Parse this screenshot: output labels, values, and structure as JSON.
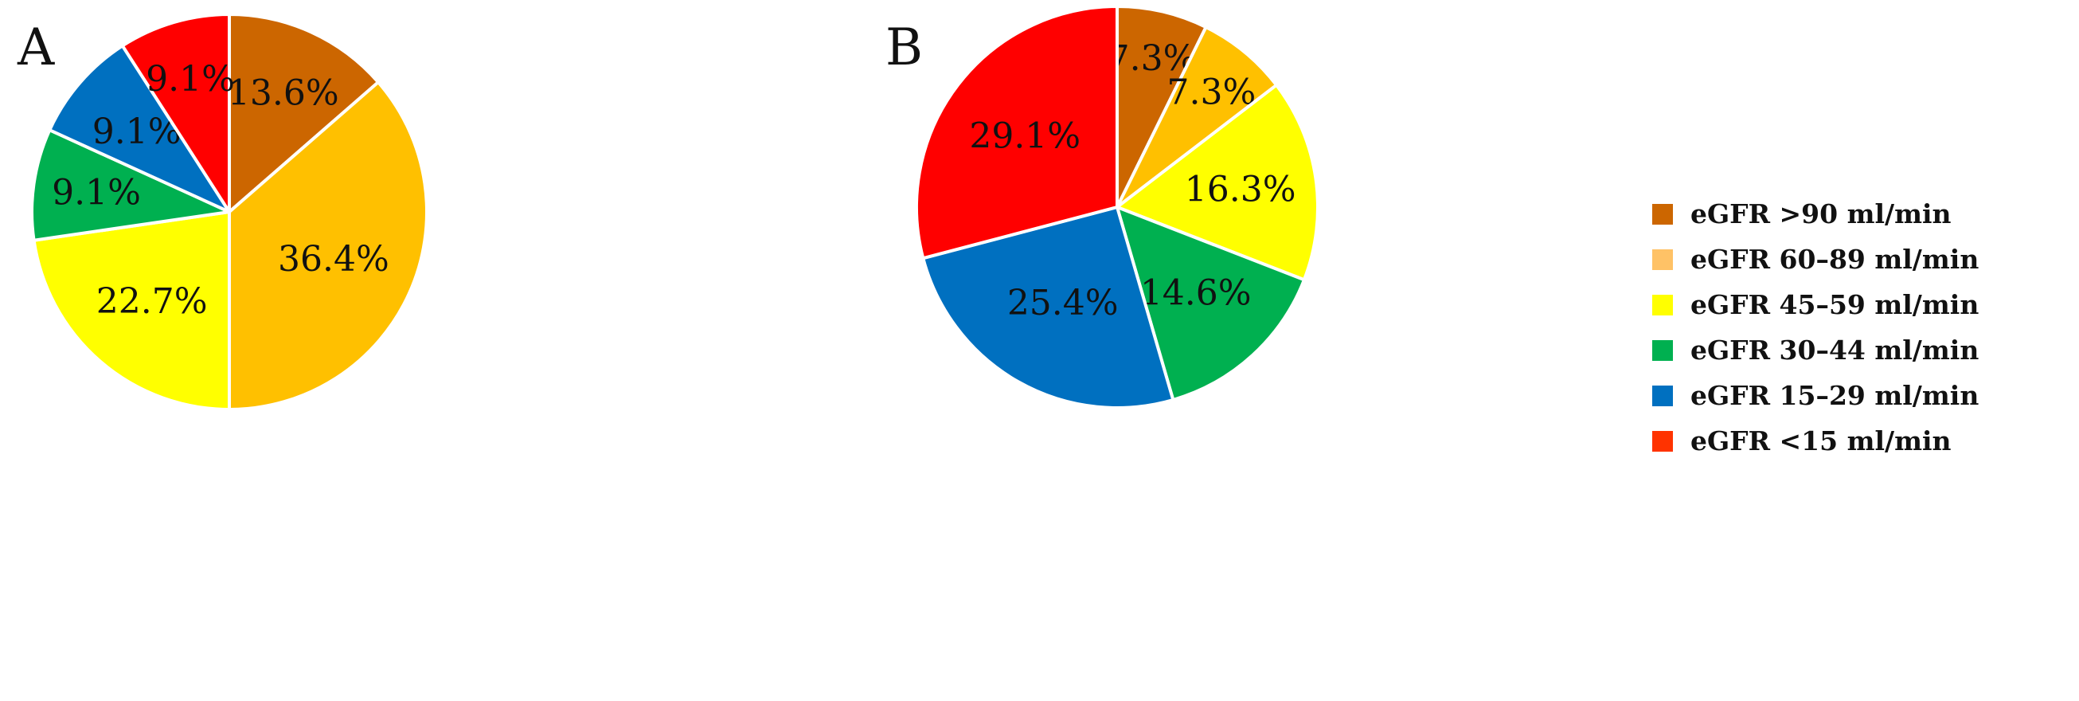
{
  "colors": {
    "gt90": "#CC6600",
    "60_89": "#FFC000",
    "45_59": "#FFFF00",
    "30_44": "#00B050",
    "15_29": "#0070C0",
    "lt15": "#FF0000",
    "legend_60_89": "#FFC266",
    "legend_lt15": "#FF3300"
  },
  "legend": [
    {
      "label": "eGFR >90 ml/min",
      "color": "#CC6600"
    },
    {
      "label": "eGFR 60–89 ml/min",
      "color": "#FFC266"
    },
    {
      "label": "eGFR 45–59 ml/min",
      "color": "#FFFF00"
    },
    {
      "label": "eGFR 30–44 ml/min",
      "color": "#00B050"
    },
    {
      "label": "eGFR 15–29 ml/min",
      "color": "#0070C0"
    },
    {
      "label": "eGFR <15 ml/min",
      "color": "#FF3300"
    }
  ],
  "chart_data": [
    {
      "type": "pie",
      "panel_label": "A",
      "categories": [
        "eGFR >90 ml/min",
        "eGFR 60–89 ml/min",
        "eGFR 45–59 ml/min",
        "eGFR 30–44 ml/min",
        "eGFR 15–29 ml/min",
        "eGFR <15 ml/min"
      ],
      "values": [
        13.6,
        36.4,
        22.7,
        9.1,
        9.1,
        9.1
      ],
      "labels": [
        "13.6%",
        "36.4%",
        "22.7%",
        "9.1%",
        "9.1%",
        "9.1%"
      ],
      "colors": [
        "#CC6600",
        "#FFC000",
        "#FFFF00",
        "#00B050",
        "#0070C0",
        "#FF0000"
      ],
      "start": "12 o'clock",
      "direction": "clockwise"
    },
    {
      "type": "pie",
      "panel_label": "B",
      "categories": [
        "eGFR >90 ml/min",
        "eGFR 60–89 ml/min",
        "eGFR 45–59 ml/min",
        "eGFR 30–44 ml/min",
        "eGFR 15–29 ml/min",
        "eGFR <15 ml/min"
      ],
      "values": [
        7.3,
        7.3,
        16.3,
        14.6,
        25.4,
        29.1
      ],
      "labels": [
        "7.3%",
        "7.3%",
        "16.3%",
        "14.6%",
        "25.4%",
        "29.1%"
      ],
      "colors": [
        "#CC6600",
        "#FFC000",
        "#FFFF00",
        "#00B050",
        "#0070C0",
        "#FF0000"
      ],
      "start": "12 o'clock",
      "direction": "clockwise"
    }
  ]
}
